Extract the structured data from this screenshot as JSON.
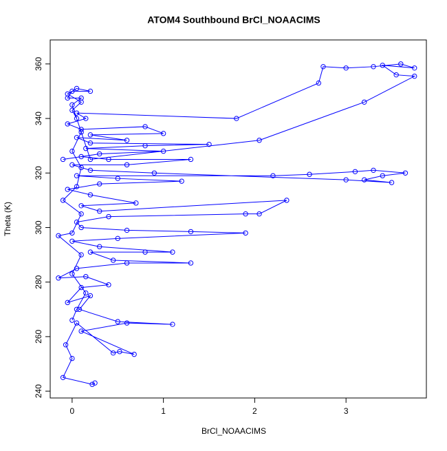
{
  "chart_data": {
    "type": "line",
    "title": "ATOM4 Southbound BrCl_NOAACIMS",
    "x_label": "BrCl_NOAACIMS",
    "y_label": "Theta (K)",
    "color": "#0000ff",
    "markers": true,
    "xlim": [
      -0.24,
      3.88
    ],
    "ylim": [
      237.5,
      368.8
    ],
    "xticks": [
      0,
      1,
      2,
      3
    ],
    "yticks": [
      240,
      260,
      280,
      300,
      320,
      340,
      360
    ],
    "x": [
      0.25,
      0.22,
      -0.1,
      0.0,
      -0.07,
      0.05,
      0.45,
      0.52,
      0.68,
      0.1,
      0.6,
      1.1,
      0.5,
      0.08,
      0.2,
      -0.05,
      0.1,
      0.4,
      0.15,
      -0.15,
      0.05,
      0.6,
      1.3,
      0.45,
      0.2,
      0.8,
      1.1,
      0.3,
      0.0,
      0.5,
      1.9,
      1.3,
      0.6,
      0.1,
      0.05,
      0.4,
      1.9,
      2.05,
      2.35,
      0.3,
      0.1,
      0.7,
      0.2,
      -0.05,
      0.3,
      1.2,
      0.5,
      0.05,
      2.2,
      2.6,
      3.1,
      3.3,
      3.65,
      3.4,
      3.2,
      3.5,
      3.0,
      0.9,
      0.2,
      0.0,
      0.6,
      1.3,
      0.4,
      0.1,
      -0.1,
      0.3,
      1.0,
      0.15,
      0.8,
      1.5,
      0.2,
      0.05,
      0.6,
      0.2,
      1.0,
      0.8,
      0.1,
      -0.05,
      0.15,
      0.05,
      1.8,
      2.7,
      2.75,
      3.0,
      3.3,
      3.6,
      3.75,
      3.4,
      3.55,
      3.75,
      3.2,
      2.05,
      0.2,
      0.0,
      0.1,
      -0.05,
      0.0,
      0.2,
      0.05,
      -0.05,
      0.1,
      0.0,
      0.05,
      0.1,
      0.0,
      0.1,
      0.05,
      -0.1,
      0.1,
      0.0,
      -0.15,
      0.1,
      0.0,
      0.15,
      0.05,
      0.0
    ],
    "series": [
      {
        "values": [
          243,
          242.5,
          245,
          252,
          257,
          265,
          254,
          254.5,
          253.5,
          262,
          265,
          264.5,
          265.5,
          270,
          275,
          272.5,
          278,
          279,
          282,
          281.5,
          285,
          287,
          287,
          288,
          291,
          291,
          291,
          293,
          295,
          296,
          298,
          298.5,
          299,
          300,
          302,
          304,
          305,
          305,
          310,
          306,
          308,
          309,
          312,
          314,
          316,
          317,
          318,
          319,
          319,
          319.5,
          320.5,
          321,
          320,
          319,
          317.5,
          316.5,
          317.5,
          320,
          321,
          323,
          323,
          325,
          325,
          326,
          325,
          327,
          328,
          329,
          330,
          330.5,
          331,
          333,
          332,
          334,
          334.5,
          337,
          336,
          338,
          340,
          342,
          340,
          353,
          359,
          358.5,
          359,
          360,
          358.5,
          359.5,
          356,
          355.5,
          346,
          332,
          325,
          345,
          347.5,
          347.5,
          350,
          350,
          351,
          349,
          346,
          343,
          340,
          335,
          328,
          322,
          315,
          310,
          305,
          298,
          297,
          290,
          283,
          276,
          270,
          266
        ]
      }
    ]
  }
}
